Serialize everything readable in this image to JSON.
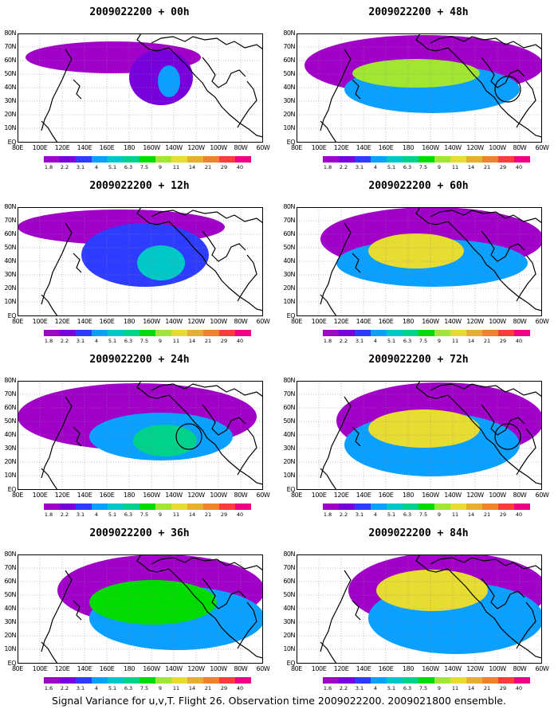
{
  "caption": "Signal Variance for u,v,T. Flight 26. Observation time 2009022200. 2009021800 ensemble.",
  "colors": [
    "#a000c8",
    "#7800dc",
    "#2d3cff",
    "#0aa0ff",
    "#00c8c8",
    "#00d28c",
    "#00dc00",
    "#a0e632",
    "#e6dc32",
    "#e6af2d",
    "#f08228",
    "#fa3c3c",
    "#f00082"
  ],
  "chart_data": {
    "type": "heatmap",
    "y_ticks": [
      "80N",
      "70N",
      "60N",
      "50N",
      "40N",
      "30N",
      "20N",
      "10N",
      "EQ"
    ],
    "x_ticks": [
      "80E",
      "100E",
      "120E",
      "140E",
      "160E",
      "180",
      "160W",
      "140W",
      "120W",
      "100W",
      "80W",
      "60W"
    ],
    "colorbar_levels": [
      "1.8",
      "2.2",
      "3.1",
      "4",
      "5.1",
      "6.3",
      "7.5",
      "9",
      "11",
      "14",
      "21",
      "29",
      "40"
    ],
    "colorbar_levels_alt": [
      "1.6",
      "2.2",
      "3.1",
      "4",
      "5.1",
      "6.3",
      "7.5",
      "9",
      "11",
      "14",
      "21",
      "29",
      "40"
    ],
    "panels": [
      {
        "title": "2009022200 + 00h",
        "level": 0,
        "circle": false
      },
      {
        "title": "2009022200 + 48h",
        "level": 4,
        "circle": true
      },
      {
        "title": "2009022200 + 12h",
        "level": 1,
        "circle": false
      },
      {
        "title": "2009022200 + 60h",
        "level": 5,
        "circle": false
      },
      {
        "title": "2009022200 + 24h",
        "level": 2,
        "circle": true
      },
      {
        "title": "2009022200 + 72h",
        "level": 6,
        "circle": true
      },
      {
        "title": "2009022200 + 36h",
        "level": 3,
        "circle": false
      },
      {
        "title": "2009022200 + 84h",
        "level": 7,
        "circle": false
      }
    ]
  }
}
